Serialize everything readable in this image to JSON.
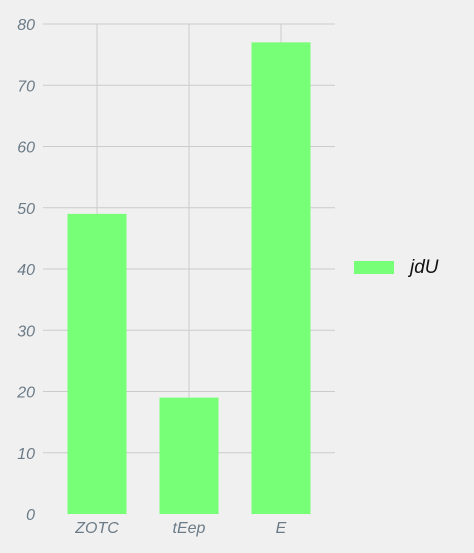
{
  "chart_data": {
    "type": "bar",
    "categories": [
      "ZOTC",
      "tEep",
      "E"
    ],
    "series": [
      {
        "name": "jdU",
        "values": [
          49,
          19,
          77
        ],
        "color": "#77ff77"
      }
    ],
    "title": "",
    "xlabel": "",
    "ylabel": "",
    "ylim": [
      0,
      80
    ],
    "yticks": [
      "0",
      "10",
      "20",
      "30",
      "40",
      "50",
      "60",
      "70",
      "80"
    ],
    "grid": true,
    "legend": "right",
    "colors": {
      "background": "#f0f0f0",
      "grid": "#cbcbcb",
      "tick_text": "#6b7b87"
    }
  }
}
